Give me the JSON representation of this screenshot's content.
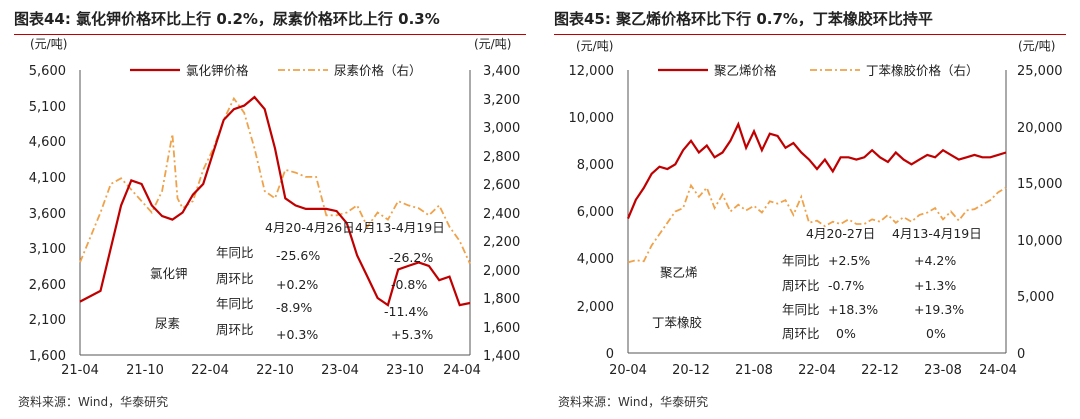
{
  "chart_data": [
    {
      "type": "line",
      "figure_label": "图表44:",
      "title": "氯化钾价格环比上行 0.2%，尿素价格环比上行 0.3%",
      "left_axis": {
        "unit": "(元/吨)",
        "ylim": [
          1600,
          5600
        ],
        "ticks": [
          "5,600",
          "5,100",
          "4,600",
          "4,100",
          "3,600",
          "3,100",
          "2,600",
          "2,100",
          "1,600"
        ]
      },
      "right_axis": {
        "unit": "(元/吨)",
        "ylim": [
          1400,
          3400
        ],
        "ticks": [
          "3,400",
          "3,200",
          "3,000",
          "2,800",
          "2,600",
          "2,400",
          "2,200",
          "2,000",
          "1,800",
          "1,600",
          "1,400"
        ]
      },
      "x_ticks": [
        "21-04",
        "21-10",
        "22-04",
        "22-10",
        "23-04",
        "23-10",
        "24-04"
      ],
      "legend": [
        "氯化钾价格",
        "尿素价格（右）"
      ],
      "colors": {
        "series1": "#c00000",
        "series2": "#f0a24a"
      },
      "series": [
        {
          "name": "氯化钾价格",
          "axis": "left",
          "x": [
            0,
            2,
            4,
            5,
            6,
            7,
            8,
            9,
            10,
            11,
            12,
            13,
            14,
            15,
            16,
            17,
            18,
            19,
            20,
            21,
            22,
            23,
            24,
            25,
            26,
            27,
            28,
            29,
            30,
            31,
            32,
            33,
            34,
            35,
            36,
            37,
            38
          ],
          "values": [
            2350,
            2500,
            3700,
            4050,
            4000,
            3700,
            3550,
            3500,
            3600,
            3850,
            4000,
            4450,
            4900,
            5050,
            5100,
            5220,
            5050,
            4500,
            3800,
            3700,
            3650,
            3650,
            3650,
            3620,
            3450,
            3000,
            2700,
            2400,
            2300,
            2800,
            2850,
            2900,
            2850,
            2650,
            2700,
            2300,
            2330
          ]
        },
        {
          "name": "尿素价格（右）",
          "axis": "right",
          "x": [
            0,
            2,
            3,
            4,
            5,
            6,
            7,
            8,
            9,
            9.5,
            10,
            11,
            12,
            13,
            14,
            15,
            16,
            17,
            18,
            19,
            20,
            21,
            22,
            23,
            24,
            25,
            26,
            27,
            28,
            29,
            30,
            31,
            32,
            33,
            34,
            35,
            36,
            37,
            38
          ],
          "values": [
            2050,
            2400,
            2600,
            2640,
            2560,
            2480,
            2400,
            2550,
            2950,
            2500,
            2430,
            2480,
            2700,
            2850,
            3050,
            3200,
            3100,
            2850,
            2550,
            2500,
            2700,
            2680,
            2650,
            2650,
            2380,
            2380,
            2400,
            2450,
            2300,
            2400,
            2350,
            2480,
            2450,
            2430,
            2380,
            2450,
            2300,
            2200,
            2040
          ]
        }
      ],
      "annotations": {
        "periods": [
          "4月20-4月26日",
          "4月13-4月19日"
        ],
        "labels": [
          "氯化钾",
          "尿素"
        ],
        "rows": [
          {
            "metric": "年同比",
            "current": "-25.6%",
            "previous": "-26.2%"
          },
          {
            "metric": "周环比",
            "current": "+0.2%",
            "previous": "-0.8%"
          },
          {
            "metric": "年同比",
            "current": "-8.9%",
            "previous": "-11.4%"
          },
          {
            "metric": "周环比",
            "current": "+0.3%",
            "previous": "+5.3%"
          }
        ]
      },
      "source": "资料来源：Wind，华泰研究"
    },
    {
      "type": "line",
      "figure_label": "图表45:",
      "title": "聚乙烯价格环比下行 0.7%，丁苯橡胶环比持平",
      "left_axis": {
        "unit": "(元/吨)",
        "ylim": [
          0,
          12000
        ],
        "ticks": [
          "12,000",
          "10,000",
          "8,000",
          "6,000",
          "4,000",
          "2,000",
          "0"
        ]
      },
      "right_axis": {
        "unit": "(元/吨)",
        "ylim": [
          0,
          25000
        ],
        "ticks": [
          "25,000",
          "20,000",
          "15,000",
          "10,000",
          "5,000",
          "0"
        ]
      },
      "x_ticks": [
        "20-04",
        "20-12",
        "21-08",
        "22-04",
        "22-12",
        "23-08",
        "24-04"
      ],
      "legend": [
        "聚乙烯价格",
        "丁苯橡胶价格（右）"
      ],
      "colors": {
        "series1": "#c00000",
        "series2": "#f0a24a"
      },
      "series": [
        {
          "name": "聚乙烯价格",
          "axis": "left",
          "x": [
            0,
            1,
            2,
            3,
            4,
            5,
            6,
            7,
            8,
            9,
            10,
            11,
            12,
            13,
            14,
            15,
            16,
            17,
            18,
            19,
            20,
            21,
            22,
            23,
            24,
            25,
            26,
            27,
            28,
            29,
            30,
            31,
            32,
            33,
            34,
            35,
            36,
            37,
            38,
            39,
            40,
            41,
            42,
            43,
            44,
            45,
            46,
            47,
            48
          ],
          "values": [
            5700,
            6500,
            7000,
            7600,
            7900,
            7800,
            8000,
            8600,
            9000,
            8500,
            8800,
            8300,
            8500,
            9000,
            9700,
            8700,
            9400,
            8600,
            9300,
            9200,
            8700,
            8900,
            8500,
            8200,
            7800,
            8200,
            7700,
            8300,
            8300,
            8200,
            8300,
            8600,
            8300,
            8100,
            8500,
            8200,
            8000,
            8200,
            8400,
            8300,
            8600,
            8400,
            8200,
            8300,
            8400,
            8300,
            8300,
            8400,
            8500
          ]
        },
        {
          "name": "丁苯橡胶价格（右）",
          "axis": "right",
          "x": [
            0,
            1,
            2,
            3,
            4,
            5,
            6,
            7,
            8,
            9,
            10,
            11,
            12,
            13,
            14,
            15,
            16,
            17,
            18,
            19,
            20,
            21,
            22,
            23,
            24,
            25,
            26,
            27,
            28,
            29,
            30,
            31,
            32,
            33,
            34,
            35,
            36,
            37,
            38,
            39,
            40,
            41,
            42,
            43,
            44,
            45,
            46,
            47,
            48
          ],
          "values": [
            8000,
            8200,
            8100,
            9500,
            10500,
            11500,
            12500,
            12800,
            14800,
            13800,
            14600,
            12800,
            14000,
            12500,
            13100,
            12600,
            13000,
            12400,
            13400,
            13200,
            13500,
            12200,
            13800,
            11500,
            11700,
            11200,
            11600,
            11400,
            11800,
            11400,
            11400,
            11800,
            11600,
            12200,
            11500,
            12000,
            11600,
            12200,
            12400,
            12800,
            11800,
            12500,
            11700,
            12600,
            12700,
            13100,
            13500,
            14200,
            14600
          ]
        }
      ],
      "annotations": {
        "periods": [
          "4月20-27日",
          "4月13-4月19日"
        ],
        "labels": [
          "聚乙烯",
          "丁苯橡胶"
        ],
        "rows": [
          {
            "metric": "年同比",
            "current": "+2.5%",
            "previous": "+4.2%"
          },
          {
            "metric": "周环比",
            "current": "-0.7%",
            "previous": "+1.3%"
          },
          {
            "metric": "年同比",
            "current": "+18.3%",
            "previous": "+19.3%"
          },
          {
            "metric": "周环比",
            "current": "0%",
            "previous": "0%"
          }
        ]
      },
      "source": "资料来源：Wind，华泰研究"
    }
  ]
}
